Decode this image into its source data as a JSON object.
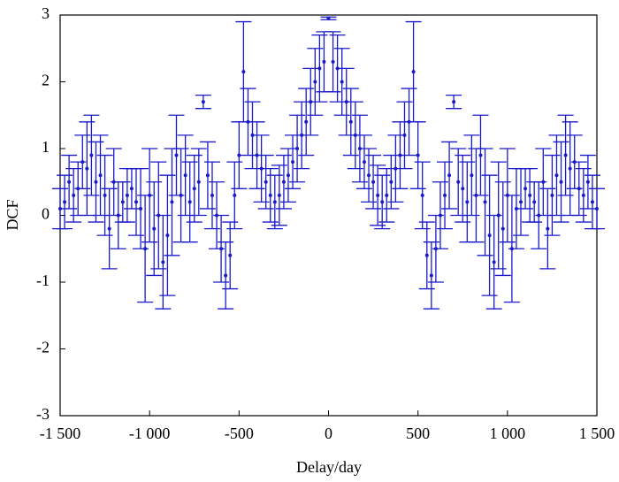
{
  "chart_data": {
    "type": "scatter",
    "xlabel": "Delay/day",
    "ylabel": "DCF",
    "color": "#1a1acc",
    "x": [
      -1500,
      -1475,
      -1450,
      -1425,
      -1400,
      -1375,
      -1350,
      -1325,
      -1300,
      -1275,
      -1250,
      -1225,
      -1200,
      -1175,
      -1150,
      -1125,
      -1100,
      -1075,
      -1050,
      -1025,
      -1000,
      -975,
      -950,
      -925,
      -900,
      -875,
      -850,
      -825,
      -800,
      -775,
      -750,
      -725,
      -700,
      -675,
      -650,
      -625,
      -600,
      -575,
      -550,
      -525,
      -500,
      -475,
      -450,
      -425,
      -400,
      -375,
      -350,
      -325,
      -300,
      -275,
      -250,
      -225,
      -200,
      -175,
      -150,
      -125,
      -100,
      -75,
      -50,
      -25,
      0,
      25,
      50,
      75,
      100,
      125,
      150,
      175,
      200,
      225,
      250,
      275,
      300,
      325,
      350,
      375,
      400,
      425,
      450,
      475,
      500,
      525,
      550,
      575,
      600,
      625,
      650,
      675,
      700,
      725,
      750,
      775,
      800,
      825,
      850,
      875,
      900,
      925,
      950,
      975,
      1000,
      1025,
      1050,
      1075,
      1100,
      1125,
      1150,
      1175,
      1200,
      1225,
      1250,
      1275,
      1300,
      1325,
      1350,
      1375,
      1400,
      1425,
      1450,
      1475,
      1500
    ],
    "values": [
      0.1,
      0.2,
      0.5,
      0.3,
      0.4,
      0.8,
      0.7,
      0.9,
      0.5,
      0.6,
      0.3,
      -0.2,
      0.5,
      0.0,
      0.2,
      0.3,
      0.4,
      0.2,
      0.1,
      -0.5,
      0.3,
      -0.2,
      0.0,
      -0.7,
      -0.3,
      0.2,
      0.9,
      0.3,
      0.6,
      0.2,
      0.4,
      0.5,
      1.7,
      0.6,
      0.3,
      0.0,
      -0.5,
      -0.9,
      -0.6,
      0.3,
      0.9,
      2.15,
      1.4,
      1.2,
      0.9,
      0.7,
      0.5,
      0.3,
      0.2,
      0.3,
      0.5,
      0.6,
      0.8,
      1.0,
      1.2,
      1.4,
      1.7,
      2.0,
      2.2,
      2.3,
      2.95,
      2.3,
      2.2,
      2.0,
      1.7,
      1.4,
      1.2,
      1.0,
      0.8,
      0.6,
      0.5,
      0.3,
      0.2,
      0.3,
      0.5,
      0.7,
      0.9,
      1.2,
      1.4,
      2.15,
      0.9,
      0.3,
      -0.6,
      -0.9,
      -0.5,
      0.0,
      0.3,
      0.6,
      1.7,
      0.5,
      0.4,
      0.2,
      0.6,
      0.3,
      0.9,
      0.2,
      -0.3,
      -0.7,
      0.0,
      -0.2,
      0.3,
      -0.5,
      0.1,
      0.2,
      0.4,
      0.3,
      0.2,
      0.0,
      0.5,
      -0.2,
      0.3,
      0.6,
      0.5,
      0.9,
      0.7,
      0.8,
      0.4,
      0.3,
      0.5,
      0.2,
      0.1
    ],
    "errors": [
      0.3,
      0.4,
      0.4,
      0.4,
      0.4,
      0.4,
      0.7,
      0.6,
      0.6,
      0.6,
      0.6,
      0.6,
      0.5,
      0.5,
      0.3,
      0.4,
      0.3,
      0.5,
      0.6,
      0.8,
      0.7,
      0.7,
      0.8,
      0.7,
      0.9,
      0.8,
      0.6,
      0.7,
      0.6,
      0.6,
      0.5,
      0.5,
      0.1,
      0.5,
      0.5,
      0.5,
      0.5,
      0.5,
      0.5,
      0.5,
      0.5,
      0.75,
      0.5,
      0.5,
      0.5,
      0.5,
      0.4,
      0.4,
      0.4,
      0.45,
      0.4,
      0.4,
      0.4,
      0.5,
      0.5,
      0.5,
      0.5,
      0.5,
      0.5,
      0.45,
      0.02,
      0.45,
      0.5,
      0.5,
      0.5,
      0.5,
      0.5,
      0.5,
      0.4,
      0.4,
      0.4,
      0.45,
      0.4,
      0.4,
      0.4,
      0.5,
      0.5,
      0.5,
      0.5,
      0.75,
      0.5,
      0.5,
      0.5,
      0.5,
      0.5,
      0.5,
      0.5,
      0.5,
      0.1,
      0.5,
      0.5,
      0.6,
      0.6,
      0.7,
      0.6,
      0.8,
      0.9,
      0.7,
      0.8,
      0.7,
      0.7,
      0.8,
      0.6,
      0.5,
      0.3,
      0.4,
      0.3,
      0.5,
      0.5,
      0.6,
      0.6,
      0.6,
      0.6,
      0.6,
      0.7,
      0.4,
      0.4,
      0.4,
      0.4,
      0.4,
      0.3
    ],
    "xlim": [
      -1500,
      1500
    ],
    "xticks": [
      {
        "value": -1500,
        "label": "-1 500"
      },
      {
        "value": -1000,
        "label": "-1 000"
      },
      -500,
      0,
      500,
      {
        "value": 1000,
        "label": "1 000"
      },
      {
        "value": 1500,
        "label": "1 500"
      }
    ],
    "ylim": [
      -3,
      3
    ],
    "yticks": [
      -3,
      -2,
      -1,
      0,
      1,
      2,
      3
    ]
  }
}
